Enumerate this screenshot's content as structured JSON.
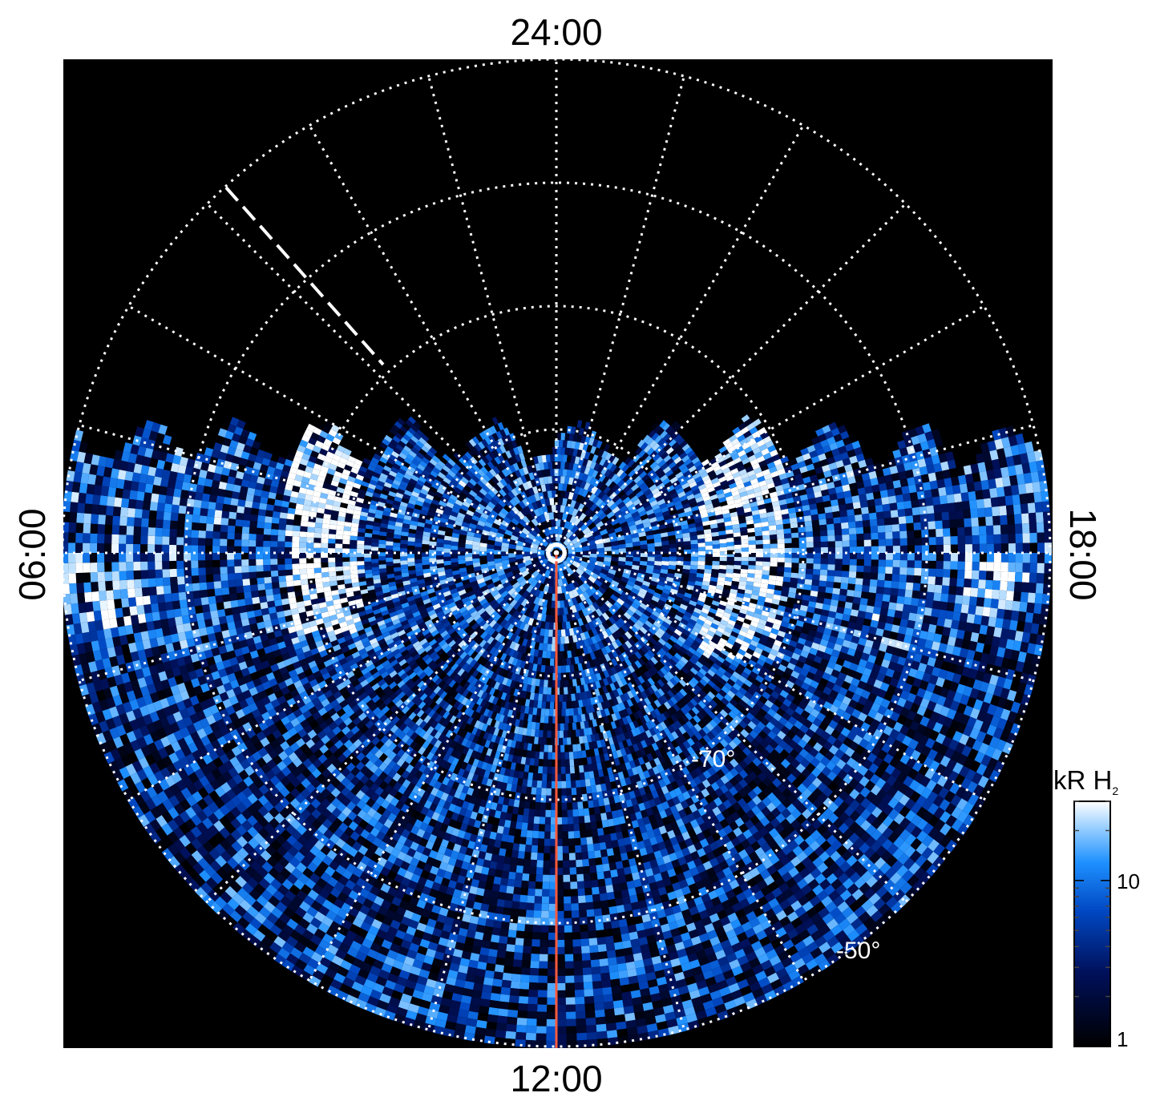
{
  "chart_data": {
    "type": "heatmap",
    "projection": "polar",
    "hemisphere_view": "polar view, centered on pole",
    "local_time_labels": {
      "top": "24:00",
      "bottom": "12:00",
      "left": "06:00",
      "right": "18:00"
    },
    "latitude_labels": [
      "-70°",
      "-50°"
    ],
    "latitude_circles_deg": [
      -50,
      -60,
      -70,
      -80
    ],
    "meridian_step_hours": 1,
    "colorbar": {
      "title_main": "kR H",
      "title_sub": "2",
      "scale": "log",
      "range": [
        1,
        30
      ],
      "tick_labels": [
        "1",
        "10"
      ],
      "tick_values": [
        1,
        10
      ],
      "colors": [
        "#000000",
        "#00105a",
        "#0047c2",
        "#1e90ff",
        "#9fd2ff",
        "#ffffff"
      ]
    },
    "background_color": "#000000",
    "grid": "dotted, white",
    "annotations": {
      "central_meridian_color": "#ff5a3c",
      "pole_marker": "circle at pole",
      "dashed_line": "white dashed segment along the 03:00 meridian (northern sector)"
    },
    "features": [
      {
        "name": "bright emission near 06-08 LT",
        "intensity_kR": 25
      },
      {
        "name": "bright emission near 16-17 LT",
        "intensity_kR": 25
      }
    ]
  }
}
